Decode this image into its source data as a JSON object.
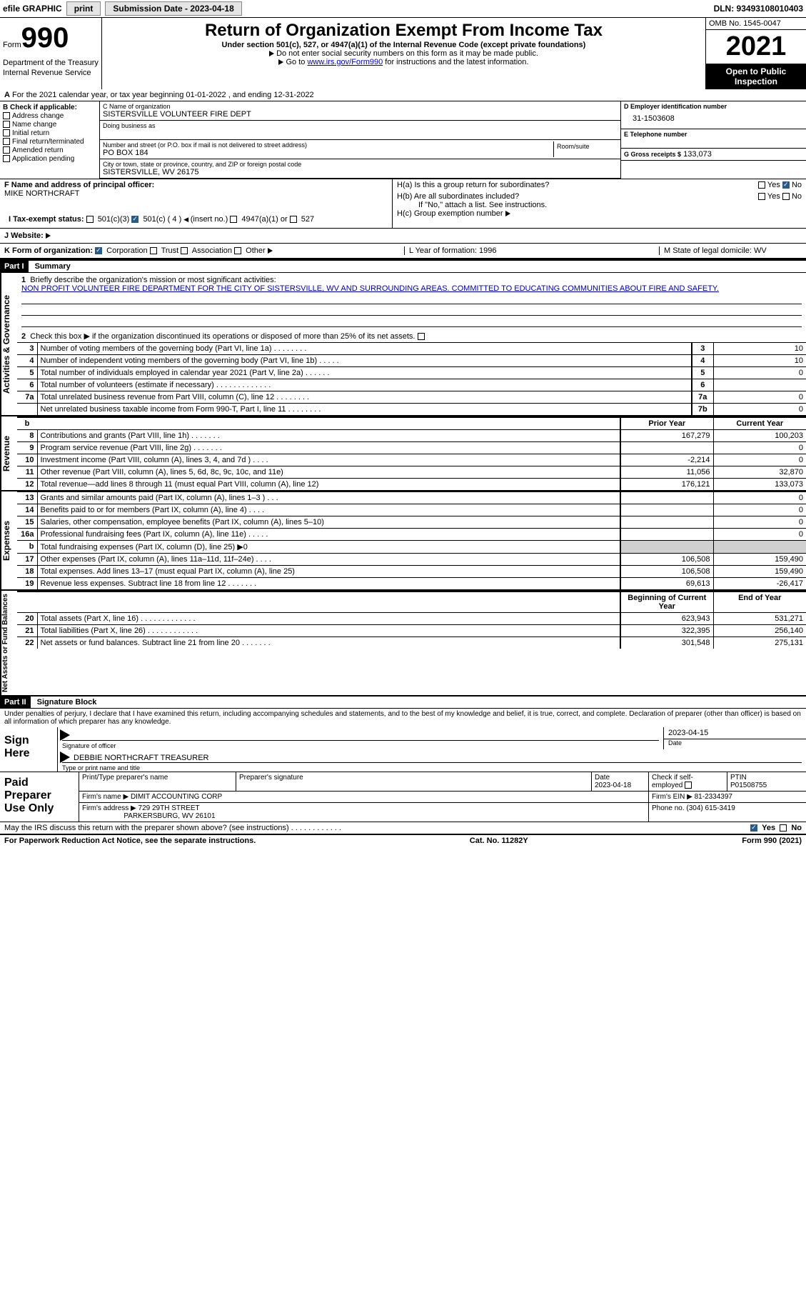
{
  "topbar": {
    "efile": "efile GRAPHIC",
    "print": "print",
    "sub_label": "Submission Date - 2023-04-18",
    "dln": "DLN: 93493108010403"
  },
  "header": {
    "form_word": "Form",
    "form_num": "990",
    "title": "Return of Organization Exempt From Income Tax",
    "sub": "Under section 501(c), 527, or 4947(a)(1) of the Internal Revenue Code (except private foundations)",
    "note1": "Do not enter social security numbers on this form as it may be made public.",
    "note2_pre": "Go to ",
    "note2_link": "www.irs.gov/Form990",
    "note2_post": " for instructions and the latest information.",
    "dept": "Department of the Treasury",
    "irs": "Internal Revenue Service",
    "omb": "OMB No. 1545-0047",
    "year": "2021",
    "open": "Open to Public Inspection"
  },
  "A": {
    "text": "For the 2021 calendar year, or tax year beginning 01-01-2022    , and ending 12-31-2022"
  },
  "B": {
    "label": "B Check if applicable:",
    "opts": [
      "Address change",
      "Name change",
      "Initial return",
      "Final return/terminated",
      "Amended return",
      "Application pending"
    ]
  },
  "C": {
    "name_lbl": "C Name of organization",
    "name": "SISTERSVILLE VOLUNTEER FIRE DEPT",
    "dba_lbl": "Doing business as",
    "addr_lbl": "Number and street (or P.O. box if mail is not delivered to street address)",
    "addr": "PO BOX 184",
    "room_lbl": "Room/suite",
    "city_lbl": "City or town, state or province, country, and ZIP or foreign postal code",
    "city": "SISTERSVILLE, WV  26175"
  },
  "D": {
    "lbl": "D Employer identification number",
    "val": "31-1503608"
  },
  "E": {
    "lbl": "E Telephone number",
    "val": ""
  },
  "G": {
    "lbl": "G Gross receipts $",
    "val": "133,073"
  },
  "F": {
    "lbl": "F  Name and address of principal officer:",
    "val": "MIKE NORTHCRAFT"
  },
  "H": {
    "a": "H(a)  Is this a group return for subordinates?",
    "b": "H(b)  Are all subordinates included?",
    "note": "If \"No,\" attach a list. See instructions.",
    "c": "H(c)  Group exemption number",
    "yes": "Yes",
    "no": "No"
  },
  "I": {
    "lbl": "I   Tax-exempt status:",
    "o1": "501(c)(3)",
    "o2": "501(c) ( 4 )",
    "o2b": "(insert no.)",
    "o3": "4947(a)(1) or",
    "o4": "527"
  },
  "J": {
    "lbl": "J   Website:",
    "arrow": "▶"
  },
  "K": {
    "lbl": "K Form of organization:",
    "opts": [
      "Corporation",
      "Trust",
      "Association",
      "Other"
    ],
    "L": "L Year of formation: 1996",
    "M": "M State of legal domicile: WV"
  },
  "part1": {
    "hdr": "Part I",
    "title": "Summary",
    "side_ag": "Activities & Governance",
    "side_rev": "Revenue",
    "side_exp": "Expenses",
    "side_net": "Net Assets or Fund Balances",
    "q1": "Briefly describe the organization's mission or most significant activities:",
    "mission": "NON PROFIT VOLUNTEER FIRE DEPARTMENT FOR THE CITY OF SISTERSVILLE, WV AND SURROUNDING AREAS. COMMITTED TO EDUCATING COMMUNITIES ABOUT FIRE AND SAFETY.",
    "q2": "Check this box ▶ if the organization discontinued its operations or disposed of more than 25% of its net assets.",
    "rows_ag": [
      {
        "n": "3",
        "t": "Number of voting members of the governing body (Part VI, line 1a)  .   .   .   .   .   .   .   .",
        "b": "3",
        "v": "10"
      },
      {
        "n": "4",
        "t": "Number of independent voting members of the governing body (Part VI, line 1b)  .   .   .   .   .",
        "b": "4",
        "v": "10"
      },
      {
        "n": "5",
        "t": "Total number of individuals employed in calendar year 2021 (Part V, line 2a)  .   .   .   .   .   .",
        "b": "5",
        "v": "0"
      },
      {
        "n": "6",
        "t": "Total number of volunteers (estimate if necessary)    .   .   .   .   .   .   .   .   .   .   .   .   .",
        "b": "6",
        "v": ""
      },
      {
        "n": "7a",
        "t": "Total unrelated business revenue from Part VIII, column (C), line 12   .   .   .   .   .   .   .   .",
        "b": "7a",
        "v": "0"
      },
      {
        "n": "",
        "t": "Net unrelated business taxable income from Form 990-T, Part I, line 11  .   .   .   .   .   .   .   .",
        "b": "7b",
        "v": "0"
      }
    ],
    "col_py": "Prior Year",
    "col_cy": "Current Year",
    "rows_rev": [
      {
        "n": "8",
        "t": "Contributions and grants (Part VIII, line 1h)   .   .   .   .   .   .   .",
        "py": "167,279",
        "cy": "100,203"
      },
      {
        "n": "9",
        "t": "Program service revenue (Part VIII, line 2g)   .   .   .   .   .   .   .",
        "py": "",
        "cy": "0"
      },
      {
        "n": "10",
        "t": "Investment income (Part VIII, column (A), lines 3, 4, and 7d )   .   .   .   .",
        "py": "-2,214",
        "cy": "0"
      },
      {
        "n": "11",
        "t": "Other revenue (Part VIII, column (A), lines 5, 6d, 8c, 9c, 10c, and 11e)",
        "py": "11,056",
        "cy": "32,870"
      },
      {
        "n": "12",
        "t": "Total revenue—add lines 8 through 11 (must equal Part VIII, column (A), line 12)",
        "py": "176,121",
        "cy": "133,073"
      }
    ],
    "rows_exp": [
      {
        "n": "13",
        "t": "Grants and similar amounts paid (Part IX, column (A), lines 1–3 )   .   .   .",
        "py": "",
        "cy": "0"
      },
      {
        "n": "14",
        "t": "Benefits paid to or for members (Part IX, column (A), line 4)   .   .   .   .",
        "py": "",
        "cy": "0"
      },
      {
        "n": "15",
        "t": "Salaries, other compensation, employee benefits (Part IX, column (A), lines 5–10)",
        "py": "",
        "cy": "0"
      },
      {
        "n": "16a",
        "t": "Professional fundraising fees (Part IX, column (A), line 11e)   .   .   .   .   .",
        "py": "",
        "cy": "0"
      },
      {
        "n": "b",
        "t": "Total fundraising expenses (Part IX, column (D), line 25) ▶0",
        "py": "gray",
        "cy": "gray"
      },
      {
        "n": "17",
        "t": "Other expenses (Part IX, column (A), lines 11a–11d, 11f–24e)   .   .   .   .",
        "py": "106,508",
        "cy": "159,490"
      },
      {
        "n": "18",
        "t": "Total expenses. Add lines 13–17 (must equal Part IX, column (A), line 25)",
        "py": "106,508",
        "cy": "159,490"
      },
      {
        "n": "19",
        "t": "Revenue less expenses. Subtract line 18 from line 12  .   .   .   .   .   .   .",
        "py": "69,613",
        "cy": "-26,417"
      }
    ],
    "col_boy": "Beginning of Current Year",
    "col_eoy": "End of Year",
    "rows_net": [
      {
        "n": "20",
        "t": "Total assets (Part X, line 16)  .   .   .   .   .   .   .   .   .   .   .   .   .",
        "py": "623,943",
        "cy": "531,271"
      },
      {
        "n": "21",
        "t": "Total liabilities (Part X, line 26)  .   .   .   .   .   .   .   .   .   .   .   .",
        "py": "322,395",
        "cy": "256,140"
      },
      {
        "n": "22",
        "t": "Net assets or fund balances. Subtract line 21 from line 20  .   .   .   .   .   .   .",
        "py": "301,548",
        "cy": "275,131"
      }
    ]
  },
  "part2": {
    "hdr": "Part II",
    "title": "Signature Block",
    "decl": "Under penalties of perjury, I declare that I have examined this return, including accompanying schedules and statements, and to the best of my knowledge and belief, it is true, correct, and complete. Declaration of preparer (other than officer) is based on all information of which preparer has any knowledge.",
    "sign_here": "Sign Here",
    "sig_lbl": "Signature of officer",
    "date_lbl": "Date",
    "date_val": "2023-04-15",
    "name_val": "DEBBIE NORTHCRAFT TREASURER",
    "name_lbl": "Type or print name and title",
    "paid": "Paid Preparer Use Only",
    "p_name_lbl": "Print/Type preparer's name",
    "p_sig_lbl": "Preparer's signature",
    "p_date_lbl": "Date",
    "p_date": "2023-04-18",
    "p_check_lbl": "Check          if self-employed",
    "ptin_lbl": "PTIN",
    "ptin": "P01508755",
    "firm_name_lbl": "Firm's name      ▶",
    "firm_name": "DIMIT ACCOUNTING CORP",
    "firm_ein_lbl": "Firm's EIN ▶",
    "firm_ein": "81-2334397",
    "firm_addr_lbl": "Firm's address ▶",
    "firm_addr1": "729 29TH STREET",
    "firm_addr2": "PARKERSBURG, WV  26101",
    "phone_lbl": "Phone no.",
    "phone": "(304) 615-3419",
    "may": "May the IRS discuss this return with the preparer shown above? (see instructions)   .   .   .   .   .   .   .   .   .   .   .   .",
    "yes": "Yes",
    "no": "No"
  },
  "footer": {
    "left": "For Paperwork Reduction Act Notice, see the separate instructions.",
    "mid": "Cat. No. 11282Y",
    "right": "Form 990 (2021)"
  }
}
